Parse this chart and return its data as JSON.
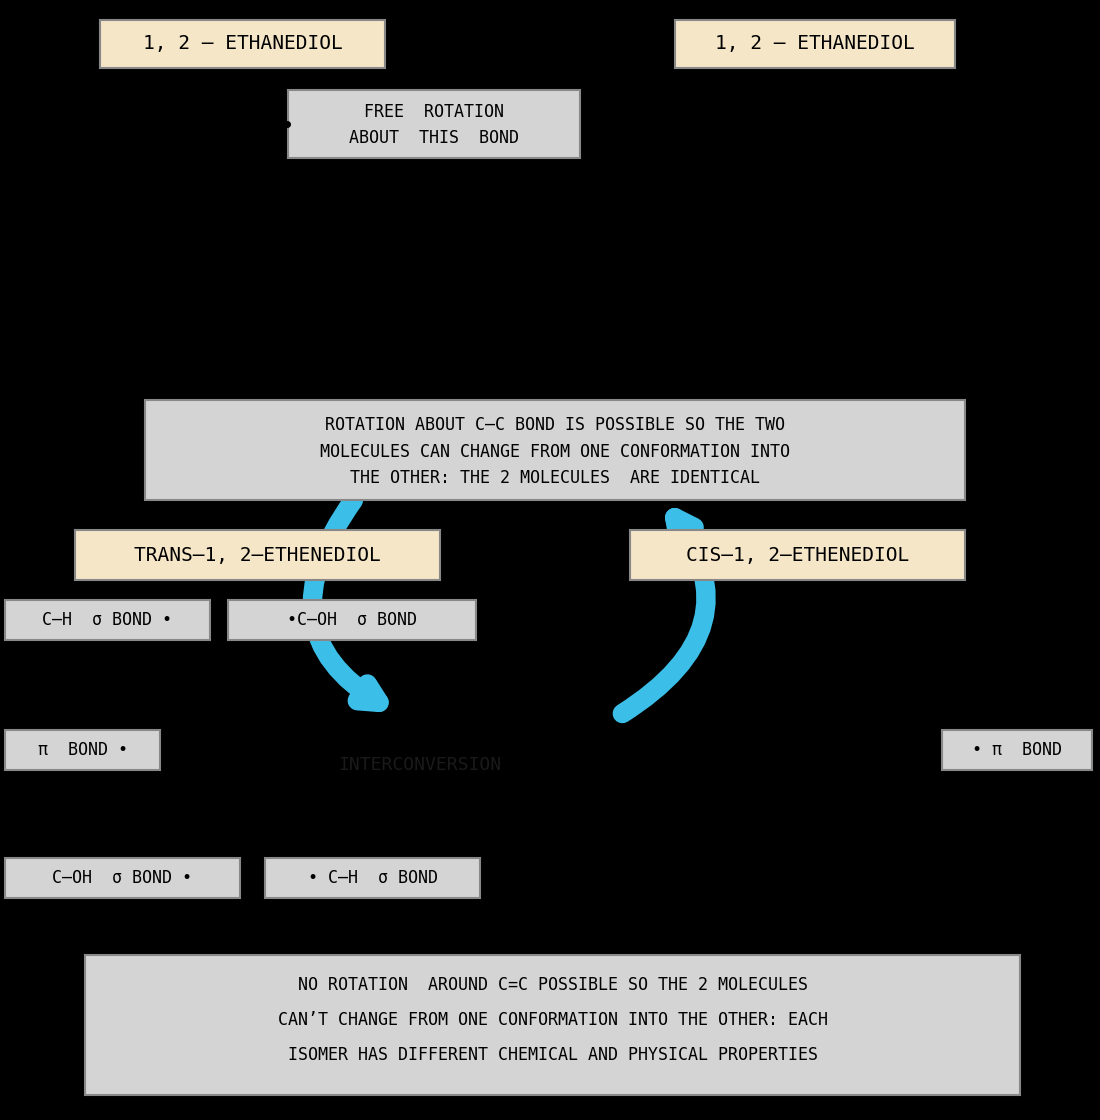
{
  "bg_color": "#000000",
  "box_bg_light": "#f5e6c8",
  "box_bg_gray": "#d4d4d4",
  "arrow_color": "#3bbfe8",
  "label_ethanediol_left": "1, 2 – ETHANEDIOL",
  "label_ethanediol_right": "1, 2 – ETHANEDIOL",
  "label_free_rotation_1": "FREE  ROTATION",
  "label_free_rotation_2": "ABOUT  THIS  BOND",
  "label_rotation_box_1": "ROTATION ABOUT C–C BOND IS POSSIBLE SO THE TWO",
  "label_rotation_box_2": "MOLECULES CAN CHANGE FROM ONE CONFORMATION INTO",
  "label_rotation_box_3": "THE OTHER: THE 2 MOLECULES  ARE IDENTICAL",
  "label_trans": "TRANS–1, 2–ETHENEDIOL",
  "label_cis": "CIS–1, 2–ETHENEDIOL",
  "label_ch_bond_left": "C–H  σ BOND •",
  "label_coh_bond_left": "•C–OH  σ BOND",
  "label_pi_bond_left": "π  BOND •",
  "label_pi_bond_right": "• π  BOND",
  "label_coh_bond_bottom": "C–OH  σ BOND •",
  "label_ch_bond_bottom": "• C–H  σ BOND",
  "label_interconversion": "INTERCONVERSION",
  "label_no_rotation_1": "NO ROTATION  AROUND C=C POSSIBLE SO THE 2 MOLECULES",
  "label_no_rotation_2": "CAN’T CHANGE FROM ONE CONFORMATION INTO THE OTHER: EACH",
  "label_no_rotation_3": "ISOMER HAS DIFFERENT CHEMICAL AND PHYSICAL PROPERTIES",
  "figsize": [
    11.0,
    11.2
  ],
  "dpi": 100
}
